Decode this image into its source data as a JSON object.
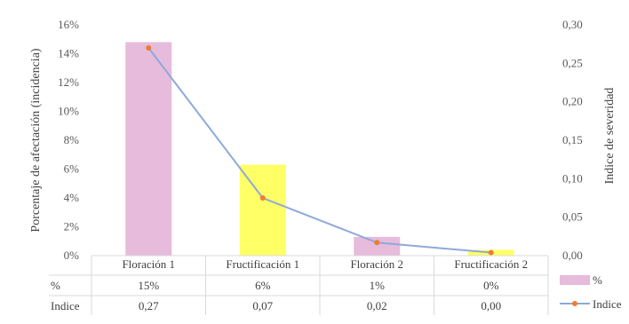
{
  "chart_data": {
    "type": "bar-line-combo",
    "categories": [
      "Floración 1",
      "Fructificación 1",
      "Floración 2",
      "Fructificación 2"
    ],
    "series": [
      {
        "name": "%",
        "type": "bar",
        "axis": "left",
        "values": [
          0.148,
          0.063,
          0.013,
          0.004
        ],
        "colors": [
          "#E6BBDB",
          "#FFFF66",
          "#E6BBDB",
          "#FFFF66"
        ]
      },
      {
        "name": "Indice",
        "type": "line",
        "axis": "right",
        "values": [
          0.27,
          0.075,
          0.017,
          0.004
        ],
        "line_color": "#8EA9DB",
        "marker_color": "#ED7D31"
      }
    ],
    "ylabel_left": "Porcentaje de afectación (incidencia)",
    "ylabel_right": "Indice de severidad",
    "ylim_left": [
      0,
      0.16
    ],
    "ylim_right": [
      0,
      0.3
    ],
    "left_ticks": [
      "0%",
      "2%",
      "4%",
      "6%",
      "8%",
      "10%",
      "12%",
      "14%",
      "16%"
    ],
    "right_ticks": [
      "0,00",
      "0,05",
      "0,10",
      "0,15",
      "0,20",
      "0,25",
      "0,30"
    ],
    "grid": false,
    "data_table": {
      "rows": [
        {
          "label": "%",
          "values": [
            "15%",
            "6%",
            "1%",
            "0%"
          ]
        },
        {
          "label": "Indice",
          "values": [
            "0,27",
            "0,07",
            "0,02",
            "0,00"
          ]
        }
      ]
    },
    "legend": {
      "placement": "right",
      "items": [
        {
          "label": "%",
          "swatch": "bar",
          "color": "#E6BBDB"
        },
        {
          "label": "Indice",
          "swatch": "line-marker",
          "color": "#8EA9DB",
          "marker_color": "#ED7D31"
        }
      ]
    }
  }
}
